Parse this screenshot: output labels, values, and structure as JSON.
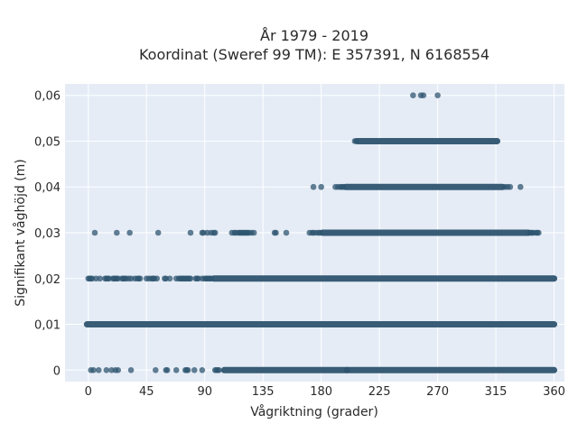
{
  "chart_data": {
    "type": "scatter",
    "title_lines": [
      "År 1979 - 2019",
      "Koordinat (Sweref 99 TM): E 357391, N 6168554"
    ],
    "xlabel": "Vågriktning (grader)",
    "ylabel": "Signifikant våghöjd (m)",
    "xlim": [
      -18,
      368
    ],
    "ylim": [
      -0.0025,
      0.0625
    ],
    "xticks": [
      0,
      45,
      90,
      135,
      180,
      225,
      270,
      315,
      360
    ],
    "xtick_labels": [
      "0",
      "45",
      "90",
      "135",
      "180",
      "225",
      "270",
      "315",
      "360"
    ],
    "yticks": [
      0,
      0.01,
      0.02,
      0.03,
      0.04,
      0.05,
      0.06
    ],
    "ytick_labels": [
      "0",
      "0,01",
      "0,02",
      "0,03",
      "0,04",
      "0,05",
      "0,06"
    ],
    "grid": true,
    "background": "#e5ecf6",
    "marker_color": "#2f5570",
    "series": [
      {
        "y": 0,
        "dense_ranges": [
          [
            105,
            200
          ],
          [
            200,
            360
          ]
        ],
        "points": [
          2,
          4,
          8,
          14,
          18,
          21,
          23,
          33,
          52,
          60,
          61,
          68,
          75,
          76,
          77,
          82,
          88,
          98,
          99,
          100,
          101
        ]
      },
      {
        "y": 0.01,
        "dense_ranges": [
          [
            -1,
            360
          ]
        ],
        "points": []
      },
      {
        "y": 0.02,
        "dense_ranges": [
          [
            97,
            360
          ]
        ],
        "points": [
          0,
          1,
          2,
          3,
          6,
          9,
          13,
          14,
          15,
          16,
          19,
          20,
          21,
          22,
          23,
          26,
          27,
          28,
          29,
          31,
          33,
          36,
          38,
          39,
          40,
          45,
          47,
          49,
          50,
          51,
          53,
          59,
          60,
          63,
          68,
          70,
          71,
          72,
          73,
          74,
          75,
          76,
          77,
          78,
          79,
          83,
          84,
          85,
          88,
          90,
          91,
          92,
          93,
          94,
          95
        ]
      },
      {
        "y": 0.03,
        "dense_ranges": [
          [
            181,
            340
          ]
        ],
        "points": [
          5,
          22,
          32,
          54,
          79,
          88,
          89,
          92,
          95,
          97,
          98,
          111,
          113,
          114,
          116,
          117,
          118,
          119,
          120,
          121,
          122,
          123,
          124,
          126,
          128,
          144,
          145,
          153,
          171,
          173,
          174,
          176,
          178,
          179,
          341,
          342,
          343,
          344,
          346,
          347,
          348
        ]
      },
      {
        "y": 0.04,
        "dense_ranges": [
          [
            199,
            320
          ]
        ],
        "points": [
          174,
          180,
          191,
          193,
          195,
          196,
          197,
          322,
          324,
          326,
          334
        ]
      },
      {
        "y": 0.05,
        "dense_ranges": [
          [
            208,
            316
          ]
        ],
        "points": [
          206,
          207
        ]
      },
      {
        "y": 0.06,
        "dense_ranges": [],
        "points": [
          251,
          257,
          259,
          270
        ]
      }
    ]
  }
}
